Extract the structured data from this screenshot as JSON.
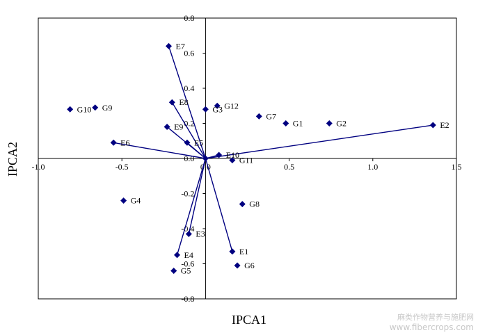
{
  "chart_data": {
    "type": "scatter",
    "xlabel": "IPCA1",
    "ylabel": "IPCA2",
    "xlim": [
      -1.0,
      1.5
    ],
    "ylim": [
      -0.8,
      0.8
    ],
    "x_ticks": [
      "-1.0",
      "-0.5",
      "0.0",
      "0.5",
      "1.0",
      "1.5"
    ],
    "y_ticks": [
      "0.8",
      "0.6",
      "0.4",
      "0.2",
      "0.0",
      "-0.2",
      "-0.4",
      "-0.6",
      "-0.8"
    ],
    "grid": false,
    "marker_color": "#000080",
    "genotypes": [
      {
        "label": "G1",
        "x": 0.48,
        "y": 0.2
      },
      {
        "label": "G2",
        "x": 0.74,
        "y": 0.2
      },
      {
        "label": "G3",
        "x": 0.0,
        "y": 0.28
      },
      {
        "label": "G4",
        "x": -0.49,
        "y": -0.24
      },
      {
        "label": "G5",
        "x": -0.19,
        "y": -0.64
      },
      {
        "label": "G6",
        "x": 0.19,
        "y": -0.61
      },
      {
        "label": "G7",
        "x": 0.32,
        "y": 0.24
      },
      {
        "label": "G8",
        "x": 0.22,
        "y": -0.26
      },
      {
        "label": "G9",
        "x": -0.66,
        "y": 0.29
      },
      {
        "label": "G10",
        "x": -0.81,
        "y": 0.28
      },
      {
        "label": "G11",
        "x": 0.16,
        "y": -0.01
      },
      {
        "label": "G12",
        "x": 0.07,
        "y": 0.3
      }
    ],
    "environments": [
      {
        "label": "E1",
        "x": 0.16,
        "y": -0.53
      },
      {
        "label": "E2",
        "x": 1.36,
        "y": 0.19
      },
      {
        "label": "E3",
        "x": -0.1,
        "y": -0.43
      },
      {
        "label": "E4",
        "x": -0.17,
        "y": -0.55
      },
      {
        "label": "E5",
        "x": -0.11,
        "y": 0.09
      },
      {
        "label": "E6",
        "x": -0.55,
        "y": 0.09
      },
      {
        "label": "E7",
        "x": -0.22,
        "y": 0.64
      },
      {
        "label": "E8",
        "x": -0.2,
        "y": 0.32
      },
      {
        "label": "E9",
        "x": -0.23,
        "y": 0.18
      },
      {
        "label": "E10",
        "x": 0.08,
        "y": 0.02
      }
    ]
  },
  "watermark": {
    "line1": "麻类作物营养与施肥网",
    "line2": "www.fibercrops.com"
  }
}
